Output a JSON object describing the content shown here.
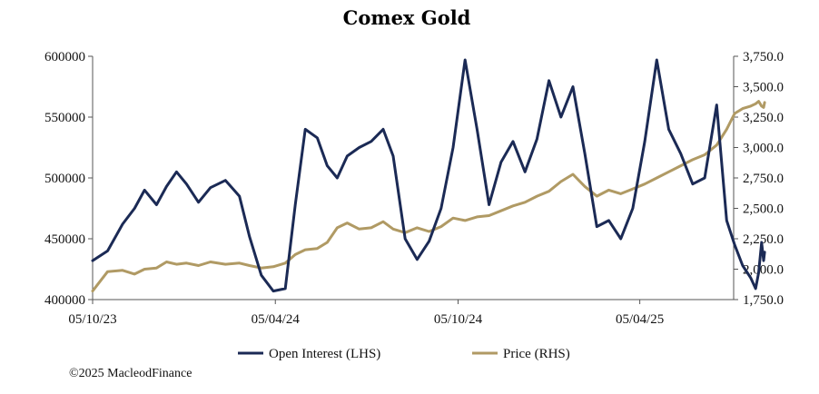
{
  "chart_data": {
    "type": "line",
    "title": "Comex Gold",
    "x_tick_labels": [
      "05/10/23",
      "05/04/24",
      "05/10/24",
      "05/04/25"
    ],
    "x_range": [
      "05/10/23",
      "08/07/25"
    ],
    "left_axis": {
      "label": "",
      "ylim": [
        400000,
        600000
      ],
      "tick_labels": [
        "400000",
        "450000",
        "500000",
        "550000",
        "600000"
      ]
    },
    "right_axis": {
      "label": "",
      "ylim": [
        1750,
        3750
      ],
      "tick_labels": [
        "1,750.0",
        "2,000.0",
        "2,250.0",
        "2,500.0",
        "2,750.0",
        "3,000.0",
        "3,250.0",
        "3,500.0",
        "3,750.0"
      ]
    },
    "grid": false,
    "legend_position": "bottom",
    "series": [
      {
        "name": "Open Interest (LHS)",
        "axis": "left",
        "color": "#1b2a55",
        "points": [
          [
            "05/10/23",
            432000
          ],
          [
            "20/10/23",
            440000
          ],
          [
            "04/11/23",
            462000
          ],
          [
            "16/11/23",
            475000
          ],
          [
            "26/11/23",
            490000
          ],
          [
            "08/12/23",
            478000
          ],
          [
            "18/12/23",
            493000
          ],
          [
            "28/12/23",
            505000
          ],
          [
            "07/01/24",
            495000
          ],
          [
            "19/01/24",
            480000
          ],
          [
            "31/01/24",
            492000
          ],
          [
            "15/02/24",
            498000
          ],
          [
            "29/02/24",
            485000
          ],
          [
            "10/03/24",
            452000
          ],
          [
            "22/03/24",
            420000
          ],
          [
            "03/04/24",
            407000
          ],
          [
            "15/04/24",
            409000
          ],
          [
            "25/04/24",
            478000
          ],
          [
            "05/05/24",
            540000
          ],
          [
            "17/05/24",
            533000
          ],
          [
            "27/05/24",
            510000
          ],
          [
            "06/06/24",
            500000
          ],
          [
            "16/06/24",
            518000
          ],
          [
            "28/06/24",
            525000
          ],
          [
            "10/07/24",
            530000
          ],
          [
            "22/07/24",
            540000
          ],
          [
            "01/08/24",
            518000
          ],
          [
            "13/08/24",
            450000
          ],
          [
            "25/08/24",
            433000
          ],
          [
            "06/09/24",
            448000
          ],
          [
            "18/09/24",
            475000
          ],
          [
            "30/09/24",
            525000
          ],
          [
            "12/10/24",
            597000
          ],
          [
            "24/10/24",
            540000
          ],
          [
            "05/11/24",
            478000
          ],
          [
            "17/11/24",
            513000
          ],
          [
            "29/11/24",
            530000
          ],
          [
            "11/12/24",
            505000
          ],
          [
            "23/12/24",
            532000
          ],
          [
            "04/01/25",
            580000
          ],
          [
            "16/01/25",
            550000
          ],
          [
            "28/01/25",
            575000
          ],
          [
            "09/02/25",
            520000
          ],
          [
            "21/02/25",
            460000
          ],
          [
            "05/03/25",
            465000
          ],
          [
            "17/03/25",
            450000
          ],
          [
            "29/03/25",
            475000
          ],
          [
            "10/04/25",
            530000
          ],
          [
            "22/04/25",
            597000
          ],
          [
            "04/05/25",
            540000
          ],
          [
            "16/05/25",
            520000
          ],
          [
            "28/05/25",
            495000
          ],
          [
            "09/06/25",
            500000
          ],
          [
            "21/06/25",
            560000
          ],
          [
            "01/07/25",
            465000
          ],
          [
            "09/07/25",
            445000
          ],
          [
            "17/07/25",
            428000
          ],
          [
            "25/07/25",
            418000
          ],
          [
            "30/07/25",
            409000
          ],
          [
            "02/08/25",
            422000
          ],
          [
            "05/08/25",
            447000
          ],
          [
            "07/08/25",
            432000
          ],
          [
            "08/08/25",
            439000
          ]
        ]
      },
      {
        "name": "Price (RHS)",
        "axis": "right",
        "color": "#b09a64",
        "points": [
          [
            "05/10/23",
            1820
          ],
          [
            "20/10/23",
            1980
          ],
          [
            "04/11/23",
            1990
          ],
          [
            "16/11/23",
            1960
          ],
          [
            "26/11/23",
            2000
          ],
          [
            "08/12/23",
            2010
          ],
          [
            "18/12/23",
            2060
          ],
          [
            "28/12/23",
            2040
          ],
          [
            "07/01/24",
            2050
          ],
          [
            "19/01/24",
            2030
          ],
          [
            "31/01/24",
            2060
          ],
          [
            "15/02/24",
            2040
          ],
          [
            "29/02/24",
            2050
          ],
          [
            "10/03/24",
            2030
          ],
          [
            "22/03/24",
            2010
          ],
          [
            "03/04/24",
            2020
          ],
          [
            "15/04/24",
            2050
          ],
          [
            "25/04/24",
            2120
          ],
          [
            "05/05/24",
            2160
          ],
          [
            "17/05/24",
            2170
          ],
          [
            "27/05/24",
            2220
          ],
          [
            "06/06/24",
            2340
          ],
          [
            "16/06/24",
            2380
          ],
          [
            "28/06/24",
            2330
          ],
          [
            "10/07/24",
            2340
          ],
          [
            "22/07/24",
            2390
          ],
          [
            "01/08/24",
            2330
          ],
          [
            "13/08/24",
            2300
          ],
          [
            "25/08/24",
            2340
          ],
          [
            "06/09/24",
            2310
          ],
          [
            "18/09/24",
            2350
          ],
          [
            "30/09/24",
            2420
          ],
          [
            "12/10/24",
            2400
          ],
          [
            "24/10/24",
            2430
          ],
          [
            "05/11/24",
            2440
          ],
          [
            "17/11/24",
            2480
          ],
          [
            "29/11/24",
            2520
          ],
          [
            "11/12/24",
            2550
          ],
          [
            "23/12/24",
            2600
          ],
          [
            "04/01/25",
            2640
          ],
          [
            "16/01/25",
            2720
          ],
          [
            "28/01/25",
            2780
          ],
          [
            "09/02/25",
            2680
          ],
          [
            "21/02/25",
            2600
          ],
          [
            "05/03/25",
            2650
          ],
          [
            "17/03/25",
            2620
          ],
          [
            "29/03/25",
            2660
          ],
          [
            "10/04/25",
            2700
          ],
          [
            "22/04/25",
            2750
          ],
          [
            "04/05/25",
            2800
          ],
          [
            "16/05/25",
            2850
          ],
          [
            "28/05/25",
            2900
          ],
          [
            "09/06/25",
            2940
          ],
          [
            "21/06/25",
            3020
          ],
          [
            "01/07/25",
            3150
          ],
          [
            "09/07/25",
            3280
          ],
          [
            "17/07/25",
            3320
          ],
          [
            "25/07/25",
            3340
          ],
          [
            "30/07/25",
            3360
          ],
          [
            "02/08/25",
            3380
          ],
          [
            "05/08/25",
            3340
          ],
          [
            "07/08/25",
            3330
          ],
          [
            "08/08/25",
            3370
          ]
        ]
      }
    ]
  },
  "footer": {
    "copyright": "©2025 MacleodFinance"
  }
}
